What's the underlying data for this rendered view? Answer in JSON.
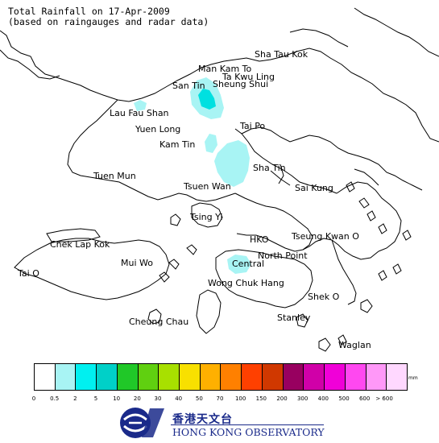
{
  "title": {
    "line1": "Total Rainfall on 17-Apr-2009",
    "line2": "(based on raingauges and radar data)"
  },
  "places": {
    "sha_tau_kok": "Sha Tau Kok",
    "man_kam_to": "Man Kam To",
    "ta_kwu_ling": "Ta Kwu Ling",
    "san_tin": "San Tin",
    "sheung_shui": "Sheung Shui",
    "lau_fau_shan": "Lau Fau Shan",
    "yuen_long": "Yuen Long",
    "tai_po": "Tai Po",
    "kam_tin": "Kam Tin",
    "sha_tin": "Sha Tin",
    "tuen_mun": "Tuen Mun",
    "tsuen_wan": "Tsuen Wan",
    "sai_kung": "Sai Kung",
    "tsing_yi": "Tsing Yi",
    "chek_lap_kok": "Chek Lap Kok",
    "hko": "HKO",
    "tseung_kwan_o": "Tseung Kwan O",
    "mui_wo": "Mui Wo",
    "north_point": "North Point",
    "central": "Central",
    "tai_o": "Tai O",
    "wong_chuk_hang": "Wong Chuk Hang",
    "shek_o": "Shek O",
    "cheung_chau": "Cheung Chau",
    "stanley": "Stanley",
    "waglan": "Waglan"
  },
  "legend": {
    "unit": "mm",
    "ticks": [
      "0",
      "0.5",
      "2",
      "5",
      "10",
      "20",
      "30",
      "40",
      "50",
      "70",
      "100",
      "150",
      "200",
      "300",
      "400",
      "500",
      "600",
      "> 600"
    ],
    "colors": [
      "#ffffff",
      "#a8f4f4",
      "#00f0f0",
      "#00d0c8",
      "#20c828",
      "#60d010",
      "#a8e000",
      "#f8e000",
      "#ffb000",
      "#ff8000",
      "#ff4000",
      "#d03800",
      "#980060",
      "#d000a8",
      "#f000d8",
      "#ff48f0",
      "#ff98f8",
      "#ffd8ff"
    ]
  },
  "rain_areas": [
    {
      "name": "san-tin-cell",
      "level_mm": "2-5 core, 0.5-2 surround"
    },
    {
      "name": "sha-tin-cell",
      "level_mm": "0.5-2"
    },
    {
      "name": "kam-tin-cell",
      "level_mm": "0.5-2"
    },
    {
      "name": "lau-fau-shan-cell",
      "level_mm": "0.5-2"
    },
    {
      "name": "central-cell",
      "level_mm": "0.5-2"
    }
  ],
  "logo": {
    "chinese": "香港天文台",
    "english": "HONG KONG OBSERVATORY"
  }
}
